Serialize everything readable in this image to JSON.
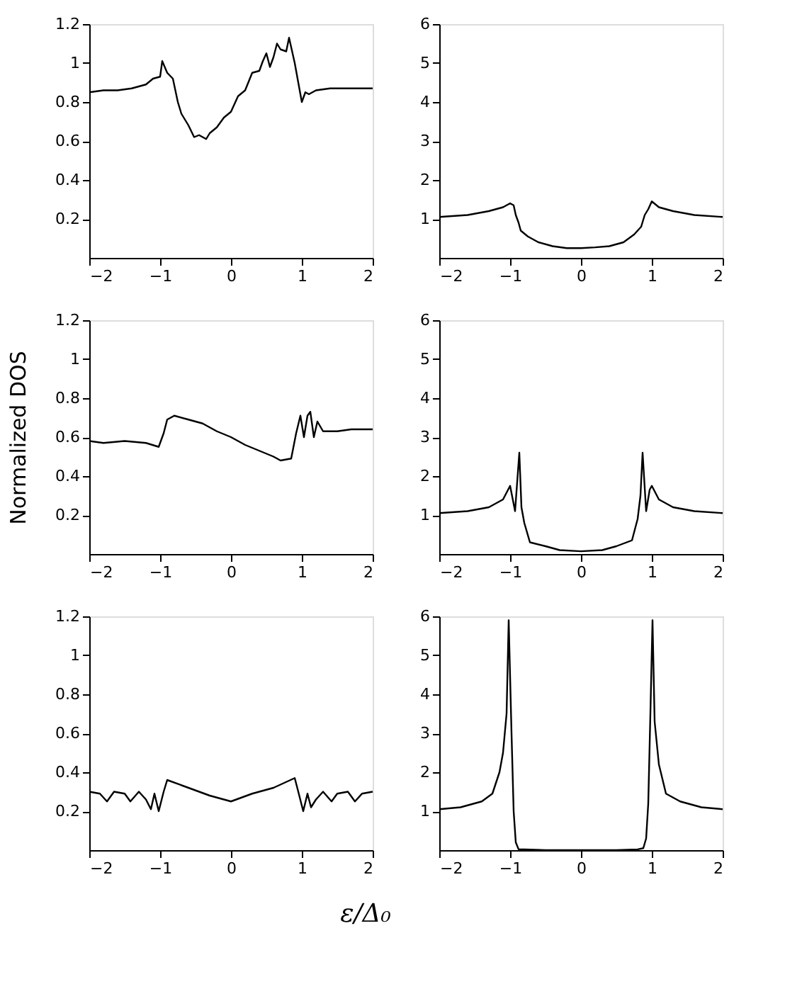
{
  "chart_data": [
    {
      "type": "line",
      "x": [
        -2,
        -1.8,
        -1.6,
        -1.4,
        -1.3,
        -1.2,
        -1.1,
        -1.0,
        -0.97,
        -0.9,
        -0.82,
        -0.75,
        -0.7,
        -0.6,
        -0.52,
        -0.45,
        -0.35,
        -0.3,
        -0.2,
        -0.1,
        0,
        0.1,
        0.2,
        0.3,
        0.4,
        0.45,
        0.5,
        0.55,
        0.6,
        0.65,
        0.7,
        0.78,
        0.82,
        0.9,
        0.95,
        1.0,
        1.05,
        1.1,
        1.2,
        1.4,
        1.6,
        1.8,
        2.0
      ],
      "series": [
        {
          "color": "#000000",
          "values": [
            0.85,
            0.86,
            0.86,
            0.87,
            0.88,
            0.89,
            0.92,
            0.93,
            1.01,
            0.95,
            0.92,
            0.8,
            0.74,
            0.68,
            0.62,
            0.63,
            0.61,
            0.64,
            0.67,
            0.72,
            0.75,
            0.83,
            0.86,
            0.95,
            0.96,
            1.01,
            1.05,
            0.98,
            1.03,
            1.1,
            1.07,
            1.06,
            1.13,
            1.0,
            0.9,
            0.8,
            0.85,
            0.84,
            0.86,
            0.87,
            0.87,
            0.87,
            0.87
          ]
        }
      ],
      "xlim": [
        -2,
        2
      ],
      "xticks": [
        -2,
        -1,
        0,
        1,
        2
      ],
      "ylim": [
        0,
        1.2
      ],
      "yticks": [
        0.2,
        0.4,
        0.6,
        0.8,
        1,
        1.2
      ],
      "grid": false,
      "legend": false
    },
    {
      "type": "line",
      "x": [
        -2,
        -1.6,
        -1.3,
        -1.1,
        -1.0,
        -0.95,
        -0.92,
        -0.88,
        -0.85,
        -0.75,
        -0.6,
        -0.4,
        -0.2,
        0,
        0.2,
        0.4,
        0.6,
        0.75,
        0.85,
        0.9,
        0.95,
        1.0,
        1.1,
        1.3,
        1.6,
        2
      ],
      "series": [
        {
          "color": "#000000",
          "values": [
            1.05,
            1.1,
            1.2,
            1.3,
            1.4,
            1.35,
            1.1,
            0.9,
            0.7,
            0.55,
            0.4,
            0.3,
            0.25,
            0.25,
            0.27,
            0.3,
            0.4,
            0.6,
            0.8,
            1.1,
            1.25,
            1.45,
            1.3,
            1.2,
            1.1,
            1.05
          ]
        }
      ],
      "xlim": [
        -2,
        2
      ],
      "xticks": [
        -2,
        -1,
        0,
        1,
        2
      ],
      "ylim": [
        0,
        6
      ],
      "yticks": [
        1,
        2,
        3,
        4,
        5,
        6
      ],
      "grid": false,
      "legend": false
    },
    {
      "type": "line",
      "ylabel": "Normalized DOS",
      "x": [
        -2,
        -1.8,
        -1.5,
        -1.2,
        -1.02,
        -0.95,
        -0.9,
        -0.8,
        -0.6,
        -0.4,
        -0.2,
        0,
        0.2,
        0.4,
        0.6,
        0.7,
        0.85,
        0.92,
        0.98,
        1.03,
        1.08,
        1.12,
        1.17,
        1.22,
        1.3,
        1.5,
        1.7,
        1.9,
        2
      ],
      "series": [
        {
          "color": "#000000",
          "values": [
            0.58,
            0.57,
            0.58,
            0.57,
            0.55,
            0.62,
            0.69,
            0.71,
            0.69,
            0.67,
            0.63,
            0.6,
            0.56,
            0.53,
            0.5,
            0.48,
            0.49,
            0.62,
            0.71,
            0.6,
            0.71,
            0.73,
            0.6,
            0.68,
            0.63,
            0.63,
            0.64,
            0.64,
            0.64
          ]
        }
      ],
      "xlim": [
        -2,
        2
      ],
      "xticks": [
        -2,
        -1,
        0,
        1,
        2
      ],
      "ylim": [
        0,
        1.2
      ],
      "yticks": [
        0.2,
        0.4,
        0.6,
        0.8,
        1,
        1.2
      ],
      "grid": false,
      "legend": false
    },
    {
      "type": "line",
      "x": [
        -2,
        -1.6,
        -1.3,
        -1.1,
        -1.0,
        -0.93,
        -0.87,
        -0.84,
        -0.8,
        -0.72,
        -0.5,
        -0.3,
        0,
        0.3,
        0.5,
        0.72,
        0.8,
        0.84,
        0.87,
        0.92,
        0.97,
        1.0,
        1.1,
        1.3,
        1.6,
        2
      ],
      "series": [
        {
          "color": "#000000",
          "values": [
            1.05,
            1.1,
            1.2,
            1.4,
            1.75,
            1.1,
            2.6,
            1.2,
            0.8,
            0.3,
            0.2,
            0.1,
            0.07,
            0.1,
            0.2,
            0.35,
            0.9,
            1.5,
            2.6,
            1.1,
            1.65,
            1.75,
            1.4,
            1.2,
            1.1,
            1.05
          ]
        }
      ],
      "xlim": [
        -2,
        2
      ],
      "xticks": [
        -2,
        -1,
        0,
        1,
        2
      ],
      "ylim": [
        0,
        6
      ],
      "yticks": [
        1,
        2,
        3,
        4,
        5,
        6
      ],
      "grid": false,
      "legend": false
    },
    {
      "type": "line",
      "xlabel": "ε/Δ₀",
      "x": [
        -2,
        -1.85,
        -1.75,
        -1.65,
        -1.5,
        -1.42,
        -1.3,
        -1.2,
        -1.13,
        -1.08,
        -1.02,
        -0.95,
        -0.9,
        -0.6,
        -0.3,
        0,
        0.3,
        0.6,
        0.9,
        0.95,
        1.02,
        1.08,
        1.13,
        1.2,
        1.3,
        1.42,
        1.5,
        1.65,
        1.75,
        1.85,
        2
      ],
      "series": [
        {
          "color": "#000000",
          "values": [
            0.3,
            0.29,
            0.25,
            0.3,
            0.29,
            0.25,
            0.3,
            0.26,
            0.21,
            0.29,
            0.2,
            0.3,
            0.36,
            0.32,
            0.28,
            0.25,
            0.29,
            0.32,
            0.37,
            0.3,
            0.2,
            0.29,
            0.22,
            0.26,
            0.3,
            0.25,
            0.29,
            0.3,
            0.25,
            0.29,
            0.3
          ]
        }
      ],
      "xlim": [
        -2,
        2
      ],
      "xticks": [
        -2,
        -1,
        0,
        1,
        2
      ],
      "ylim": [
        0,
        1.2
      ],
      "yticks": [
        0.2,
        0.4,
        0.6,
        0.8,
        1,
        1.2
      ],
      "grid": false,
      "legend": false
    },
    {
      "type": "line",
      "x": [
        -2,
        -1.7,
        -1.4,
        -1.25,
        -1.15,
        -1.1,
        -1.05,
        -1.02,
        -0.98,
        -0.95,
        -0.92,
        -0.88,
        -0.8,
        -0.5,
        0.5,
        0.8,
        0.88,
        0.92,
        0.95,
        0.98,
        1.01,
        1.04,
        1.1,
        1.2,
        1.4,
        1.7,
        2
      ],
      "series": [
        {
          "color": "#000000",
          "values": [
            1.05,
            1.1,
            1.25,
            1.45,
            2.0,
            2.5,
            3.5,
            5.9,
            3.0,
            1.0,
            0.2,
            0.02,
            0.02,
            0,
            0,
            0.02,
            0.05,
            0.3,
            1.2,
            3.5,
            5.9,
            3.3,
            2.2,
            1.45,
            1.25,
            1.1,
            1.05
          ]
        }
      ],
      "xlim": [
        -2,
        2
      ],
      "xticks": [
        -2,
        -1,
        0,
        1,
        2
      ],
      "ylim": [
        0,
        6
      ],
      "yticks": [
        1,
        2,
        3,
        4,
        5,
        6
      ],
      "grid": false,
      "legend": false
    }
  ]
}
